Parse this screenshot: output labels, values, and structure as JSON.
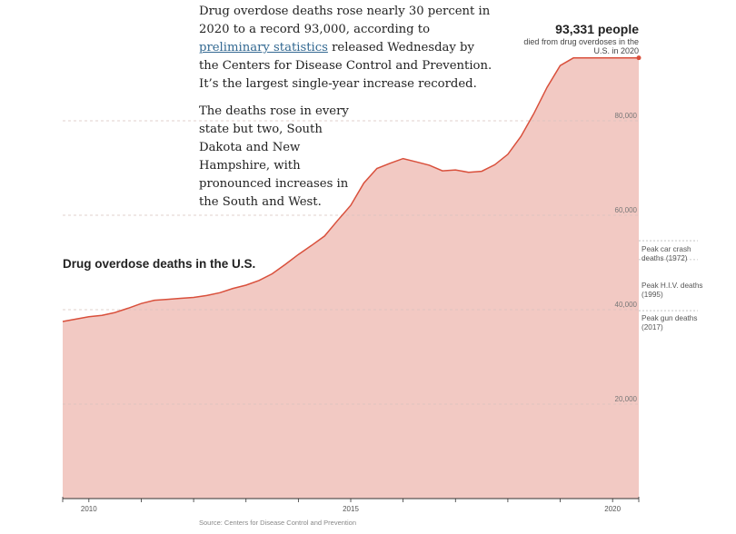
{
  "intro": {
    "p1_before_link": "Drug overdose deaths rose nearly 30 percent in 2020 to a record 93,000, according to ",
    "p1_link": "preliminary statistics",
    "p1_after_link": " released Wednesday by the Centers for Disease Control and Prevention. It’s the largest single-year increase recorded.",
    "p2": "The deaths rose in every state but two, South Dakota and New Hampshire, with pronounced increases in the South and West."
  },
  "peak_annotation": {
    "value_label": "93,331 people",
    "sub_label": "died from drug overdoses in the U.S. in 2020"
  },
  "reference_lines": [
    {
      "label": "Peak car crash deaths (1972)",
      "value": 54600
    },
    {
      "label": "Peak H.I.V. deaths (1995)",
      "value": 50600
    },
    {
      "label": "Peak gun deaths (2017)",
      "value": 39800
    }
  ],
  "source": "Source: Centers for Disease Control and Prevention",
  "colors": {
    "line": "#d9503c",
    "fill": "#f2c9c3",
    "grid": "#d8c2bf",
    "axis": "#333333"
  },
  "chart_data": {
    "type": "area",
    "title": "Drug overdose deaths in the U.S.",
    "xlabel": "",
    "ylabel": "",
    "xlim": [
      2009.5,
      2020.5
    ],
    "ylim": [
      0,
      95000
    ],
    "y_ticks": [
      20000,
      40000,
      60000,
      80000
    ],
    "y_tick_labels": [
      "20,000",
      "40,000",
      "60,000",
      "80,000"
    ],
    "x_ticks": [
      2010,
      2015,
      2020
    ],
    "x_tick_labels": [
      "2010",
      "2015",
      "2020"
    ],
    "grid": true,
    "series": [
      {
        "x": [
          2009.5,
          2009.75,
          2010.0,
          2010.25,
          2010.5,
          2010.75,
          2011.0,
          2011.25,
          2011.5,
          2011.75,
          2012.0,
          2012.25,
          2012.5,
          2012.75,
          2013.0,
          2013.25,
          2013.5,
          2013.75,
          2014.0,
          2014.25,
          2014.5,
          2014.75,
          2015.0,
          2015.25,
          2015.5,
          2015.75,
          2016.0,
          2016.25,
          2016.5,
          2016.75,
          2017.0,
          2017.25,
          2017.5,
          2017.75,
          2018.0,
          2018.25,
          2018.5,
          2018.75,
          2019.0,
          2019.25,
          2019.5,
          2019.75,
          2020.0,
          2020.25,
          2020.5
        ],
        "y": [
          37500,
          38000,
          38500,
          38800,
          39400,
          40300,
          41300,
          42000,
          42200,
          42400,
          42600,
          43000,
          43600,
          44500,
          45200,
          46200,
          47600,
          49600,
          51700,
          53600,
          55600,
          58900,
          62100,
          66800,
          69900,
          71000,
          72000,
          71300,
          70600,
          69400,
          69600,
          69100,
          69300,
          70700,
          72900,
          76700,
          81600,
          87100,
          91700,
          93300,
          93331,
          93331,
          93331,
          93331,
          93331
        ]
      }
    ]
  }
}
